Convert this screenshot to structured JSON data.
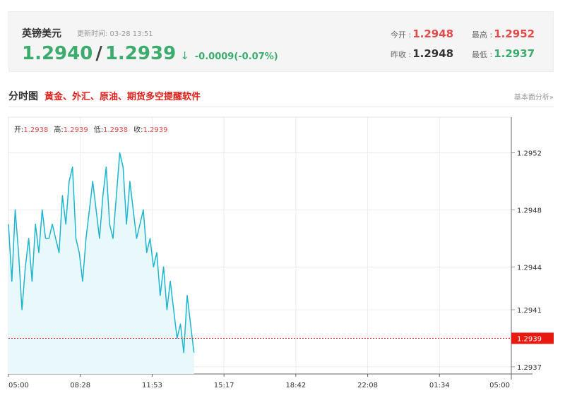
{
  "quote": {
    "name": "英镑美元",
    "update_time": "更新时间: 03-28 13:51",
    "bid": "1.2940",
    "slash": "/",
    "ask": "1.2939",
    "arrow": "↓",
    "change": "-0.0009(-0.07%)",
    "stats": {
      "open_label": "今开 :",
      "open_value": "1.2948",
      "high_label": "最高 :",
      "high_value": "1.2952",
      "prev_close_label": "昨收 :",
      "prev_close_value": "1.2948",
      "low_label": "最低 :",
      "low_value": "1.2937"
    }
  },
  "section": {
    "title": "分时图",
    "promo_link": "黄金、外汇、原油、期货多空提醒软件",
    "right_link": "基本面分析»"
  },
  "ohlc": {
    "open_label": "开:",
    "open_value": "1.2938",
    "high_label": "高:",
    "high_value": "1.2939",
    "low_label": "低:",
    "low_value": "1.2938",
    "close_label": "收:",
    "close_value": "1.2939"
  },
  "colors": {
    "line": "#1fb5cf",
    "area": "#e9f8fb",
    "current_marker": "#e8190f",
    "up": "#e34b4b",
    "down": "#3cac6e"
  },
  "chart_data": {
    "type": "area",
    "title": "",
    "xlabel": "",
    "ylabel": "",
    "x_ticks": [
      "05:00",
      "08:28",
      "11:53",
      "15:17",
      "18:42",
      "22:08",
      "01:34",
      "05:00"
    ],
    "y_ticks": [
      1.2952,
      1.2948,
      1.2944,
      1.2941,
      1.2937
    ],
    "ylim": [
      1.29365,
      1.29545
    ],
    "x_range_minutes": [
      0,
      1440
    ],
    "current_price": 1.2939,
    "current_price_label": "1.2939",
    "grid": true,
    "series": [
      {
        "values": [
          1.2947,
          1.2943,
          1.2948,
          1.2945,
          1.2941,
          1.2944,
          1.2946,
          1.2943,
          1.2947,
          1.2945,
          1.2948,
          1.2946,
          1.2946,
          1.2947,
          1.2946,
          1.2945,
          1.2949,
          1.2947,
          1.295,
          1.2951,
          1.2946,
          1.2945,
          1.2943,
          1.2946,
          1.2948,
          1.295,
          1.2948,
          1.2946,
          1.2949,
          1.2951,
          1.2947,
          1.2946,
          1.2949,
          1.2952,
          1.2951,
          1.2947,
          1.295,
          1.2948,
          1.2946,
          1.2947,
          1.2948,
          1.2945,
          1.2946,
          1.2944,
          1.2945,
          1.2942,
          1.2944,
          1.2941,
          1.2943,
          1.2941,
          1.2939,
          1.294,
          1.2938,
          1.2942,
          1.294,
          1.2938
        ]
      }
    ]
  }
}
